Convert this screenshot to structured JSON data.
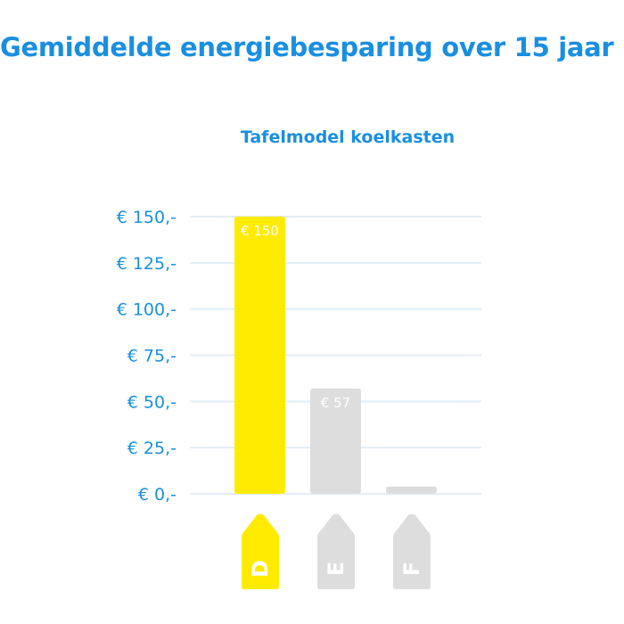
{
  "chart_data": {
    "type": "bar",
    "title": "Gemiddelde energiebesparing over 15 jaar",
    "subtitle": "Tafelmodel koelkasten",
    "categories": [
      "D",
      "E",
      "F"
    ],
    "values": [
      150,
      57,
      4
    ],
    "data_labels": [
      "€ 150",
      "€ 57",
      ""
    ],
    "yticks": [
      0,
      25,
      50,
      75,
      100,
      125,
      150
    ],
    "ytick_labels": [
      "€ 0,-",
      "€ 25,-",
      "€ 50,-",
      "€ 75,-",
      "€ 100,-",
      "€ 125,-",
      "€ 150,-"
    ],
    "ylim": [
      0,
      150
    ],
    "grid": true,
    "colors": {
      "highlight": "#ffeb00",
      "default": "#dddddd",
      "text": "#1a8fe0",
      "grid": "#e3edf7"
    },
    "highlight_index": 0
  }
}
